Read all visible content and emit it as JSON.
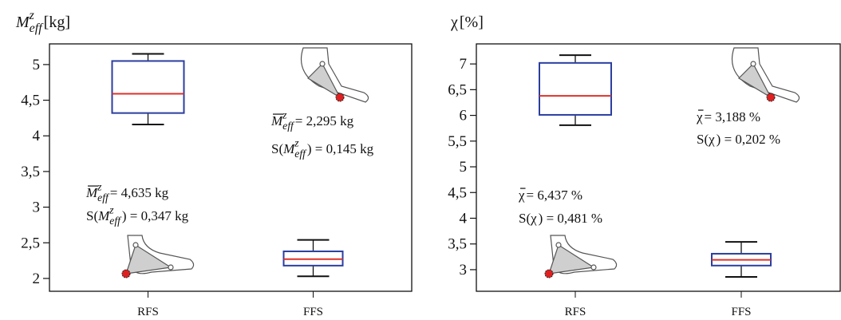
{
  "chart_data": [
    {
      "type": "box",
      "ylabel": {
        "symbol": "M",
        "sub": "eff",
        "sup": "z",
        "text": "[kg]"
      },
      "categories": [
        "RFS",
        "FFS"
      ],
      "box_color": "#2b3ea0",
      "median_color": "#e0302a",
      "series": [
        {
          "whislo": [
            4.16,
            2.03
          ],
          "q1": [
            4.32,
            2.18
          ],
          "med": [
            4.59,
            2.27
          ],
          "q3": [
            5.05,
            2.38
          ],
          "whishi": [
            5.15,
            2.54
          ]
        }
      ],
      "ylim": [
        1.82,
        5.29
      ],
      "yticks": [
        2,
        {
          "value": 2.5,
          "label": "2,5"
        },
        3,
        {
          "value": 3.5,
          "label": "3,5"
        },
        4,
        {
          "value": 4.5,
          "label": "4,5"
        },
        5
      ],
      "annotations": [
        {
          "bar": true,
          "symbol": "M",
          "sub": "eff",
          "sup": "z",
          "text": " = 4,635 kg"
        },
        {
          "prefix": "S(",
          "symbol": "M",
          "sub": "eff",
          "sup": "z",
          "text": ") = 0,347 kg"
        },
        {
          "bar": true,
          "symbol": "M",
          "sub": "eff",
          "sup": "z",
          "text": " = 2,295 kg"
        },
        {
          "prefix": "S(",
          "symbol": "M",
          "sub": "eff",
          "sup": "z",
          "text": ") = 0,145 kg"
        }
      ]
    },
    {
      "type": "box",
      "ylabel": {
        "symbol": "χ",
        "text": " [%]"
      },
      "categories": [
        "RFS",
        "FFS"
      ],
      "box_color": "#2b3ea0",
      "median_color": "#e0302a",
      "series": [
        {
          "whislo": [
            5.81,
            2.86
          ],
          "q1": [
            6.01,
            3.08
          ],
          "med": [
            6.38,
            3.19
          ],
          "q3": [
            7.02,
            3.31
          ],
          "whishi": [
            7.17,
            3.54
          ]
        }
      ],
      "ylim": [
        2.58,
        7.39
      ],
      "yticks": [
        3,
        {
          "value": 3.5,
          "label": "3,5"
        },
        4,
        {
          "value": 4.5,
          "label": "4,5"
        },
        5,
        {
          "value": 5.5,
          "label": "5,5"
        },
        6,
        {
          "value": 6.5,
          "label": "6,5"
        },
        7
      ],
      "annotations": [
        {
          "bar": true,
          "symbol": "χ",
          "text": " = 6,437 %"
        },
        {
          "prefix": "S(",
          "symbol": "χ",
          "text": ") = 0,481 %"
        },
        {
          "bar": true,
          "symbol": "χ",
          "text": " = 3,188 %"
        },
        {
          "prefix": "S(",
          "symbol": "χ",
          "text": ") = 0,202 %"
        }
      ]
    }
  ]
}
